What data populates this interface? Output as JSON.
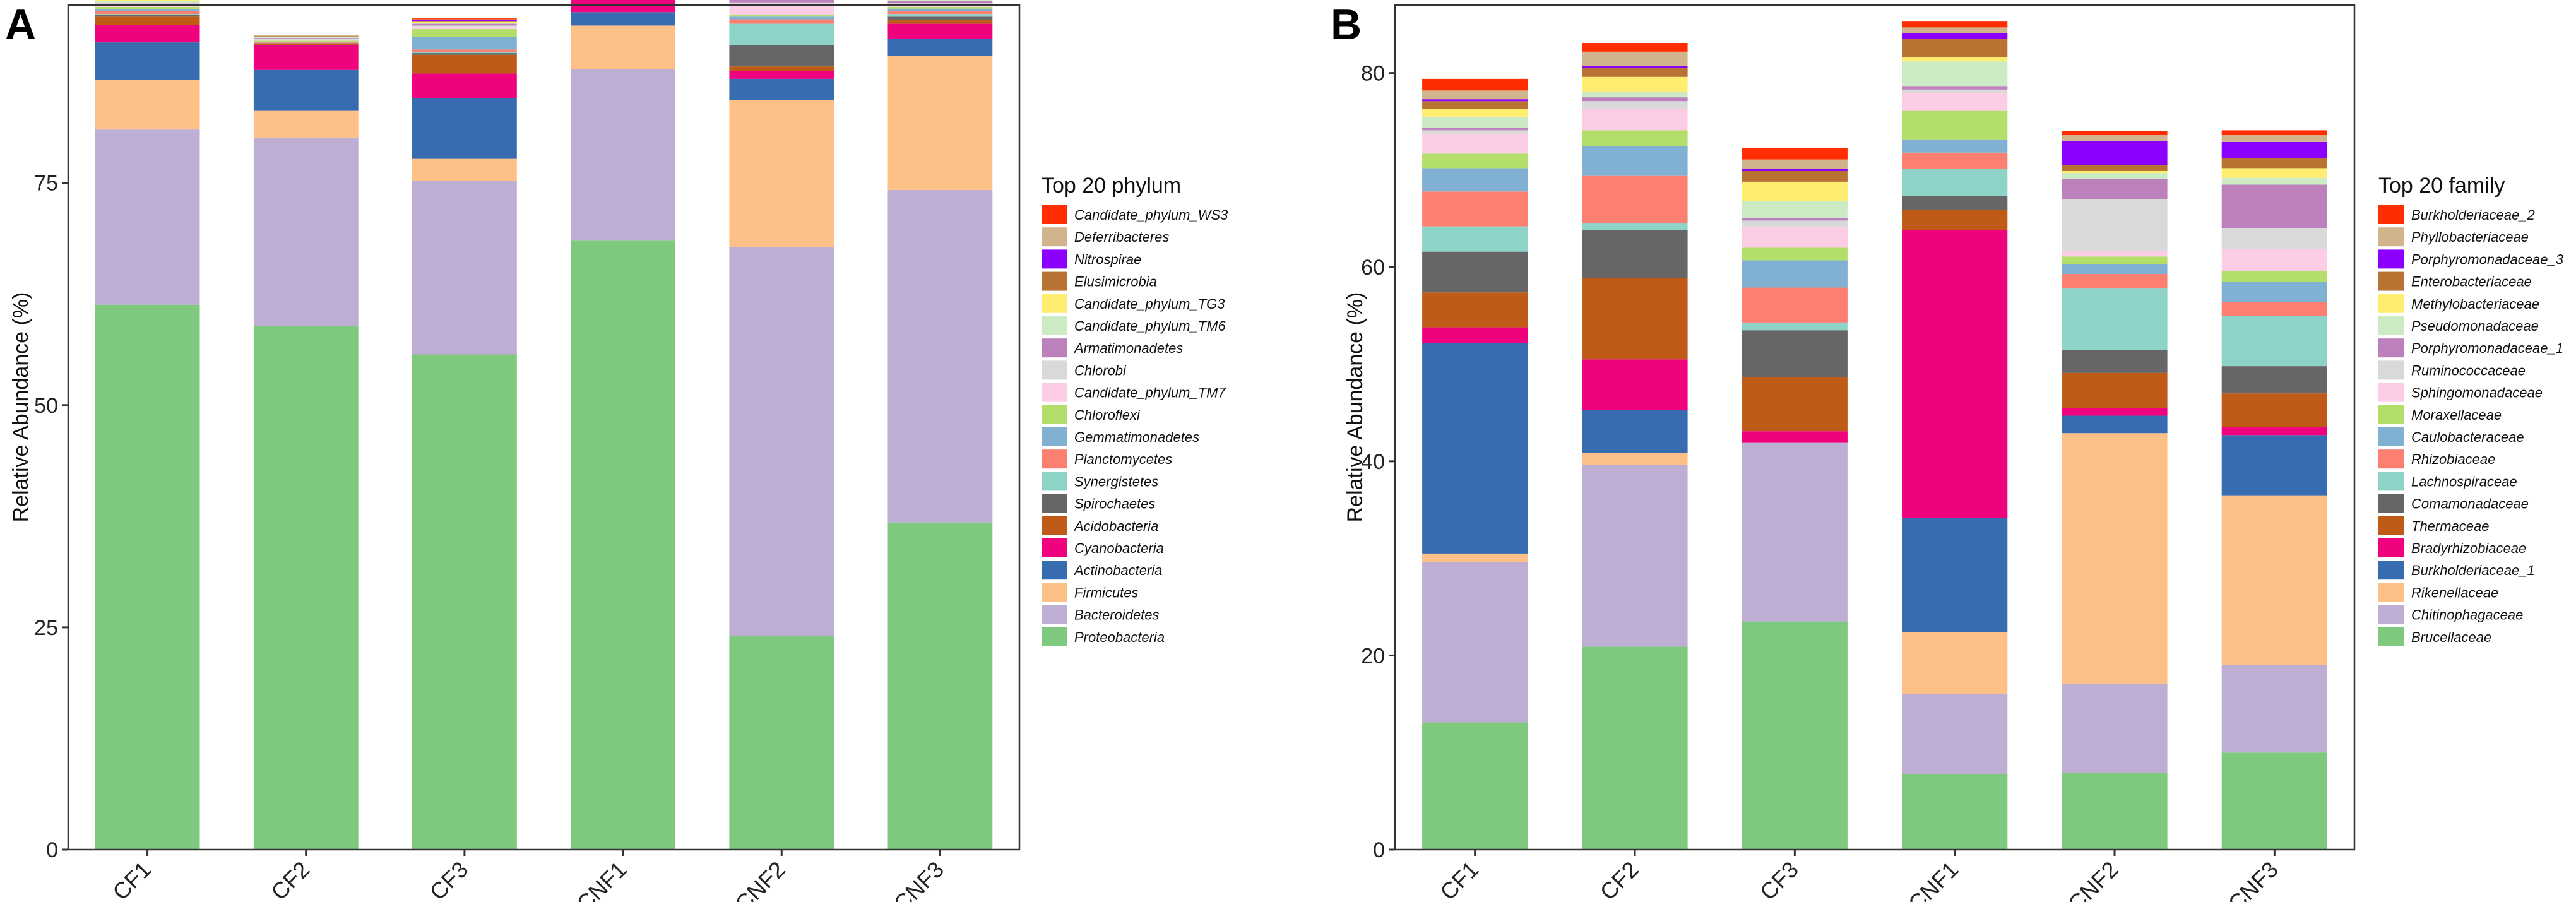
{
  "chart_data": [
    {
      "type": "bar",
      "stacked": true,
      "panel_label": "A",
      "ylabel": "Relative Abundance (%)",
      "xlabel": "",
      "ylim": [
        0,
        95
      ],
      "yticks": [
        0,
        25,
        50,
        75
      ],
      "categories": [
        "CF1",
        "CF2",
        "CF3",
        "CNF1",
        "CNF2",
        "CNF3"
      ],
      "legend_title": "Top 20 phylum",
      "legend_position": "right",
      "series": [
        {
          "name": "Proteobacteria",
          "color": "#7FC97F",
          "values": [
            61.3,
            58.9,
            55.7,
            68.5,
            24.0,
            36.8
          ]
        },
        {
          "name": "Bacteroidetes",
          "color": "#BEAED4",
          "values": [
            19.7,
            21.2,
            19.5,
            19.3,
            43.8,
            37.4
          ]
        },
        {
          "name": "Firmicutes",
          "color": "#FDC086",
          "values": [
            5.6,
            3.0,
            2.5,
            4.9,
            16.5,
            15.1
          ]
        },
        {
          "name": "Actinobacteria",
          "color": "#386CB0",
          "values": [
            4.2,
            4.6,
            6.8,
            1.5,
            2.4,
            1.9
          ]
        },
        {
          "name": "Cyanobacteria",
          "color": "#F0027F",
          "values": [
            2.0,
            2.8,
            2.8,
            1.6,
            0.9,
            1.7
          ]
        },
        {
          "name": "Acidobacteria",
          "color": "#BF5B17",
          "values": [
            0.9,
            0.1,
            2.1,
            0.3,
            0.5,
            0.4
          ]
        },
        {
          "name": "Spirochaetes",
          "color": "#666666",
          "values": [
            0.2,
            0.1,
            0.2,
            0.4,
            2.4,
            0.4
          ]
        },
        {
          "name": "Synergistetes",
          "color": "#8DD3C7",
          "values": [
            0.1,
            0.0,
            0.1,
            0.3,
            2.4,
            0.3
          ]
        },
        {
          "name": "Planctomycetes",
          "color": "#FB8072",
          "values": [
            0.3,
            0.1,
            0.3,
            0.3,
            0.5,
            0.3
          ]
        },
        {
          "name": "Gemmatimonadetes",
          "color": "#80B1D3",
          "values": [
            0.2,
            0.1,
            1.4,
            0.2,
            0.3,
            0.3
          ]
        },
        {
          "name": "Chloroflexi",
          "color": "#B3DE69",
          "values": [
            0.3,
            0.1,
            0.9,
            0.2,
            0.2,
            0.2
          ]
        },
        {
          "name": "Candidate_phylum_TM7",
          "color": "#FCCDE5",
          "values": [
            0.2,
            0.1,
            0.2,
            0.2,
            1.0,
            0.2
          ]
        },
        {
          "name": "Chlorobi",
          "color": "#D9D9D9",
          "values": [
            0.2,
            0.1,
            0.2,
            0.5,
            0.4,
            0.2
          ]
        },
        {
          "name": "Armatimonadetes",
          "color": "#BC80BD",
          "values": [
            0.1,
            0.1,
            0.2,
            0.3,
            0.3,
            0.3
          ]
        },
        {
          "name": "Candidate_phylum_TM6",
          "color": "#CCEBC5",
          "values": [
            0.2,
            0.1,
            0.1,
            0.2,
            0.2,
            0.2
          ]
        },
        {
          "name": "Candidate_phylum_TG3",
          "color": "#FFED6F",
          "values": [
            0.1,
            0.0,
            0.1,
            0.1,
            0.1,
            0.2
          ]
        },
        {
          "name": "Elusimicrobia",
          "color": "#B87333",
          "values": [
            0.1,
            0.1,
            0.1,
            0.2,
            0.1,
            0.2
          ]
        },
        {
          "name": "Nitrospirae",
          "color": "#8B00FF",
          "values": [
            0.1,
            0.0,
            0.1,
            0.1,
            0.1,
            0.1
          ]
        },
        {
          "name": "Deferribacteres",
          "color": "#D2B48C",
          "values": [
            0.1,
            0.1,
            0.1,
            0.2,
            0.2,
            0.2
          ]
        },
        {
          "name": "Candidate_phylum_WS3",
          "color": "#FF2D00",
          "values": [
            0.1,
            0.0,
            0.1,
            0.1,
            0.1,
            0.1
          ]
        }
      ]
    },
    {
      "type": "bar",
      "stacked": true,
      "panel_label": "B",
      "ylabel": "Relative Abundance (%)",
      "xlabel": "",
      "ylim": [
        0,
        87
      ],
      "yticks": [
        0,
        20,
        40,
        60,
        80
      ],
      "categories": [
        "CF1",
        "CF2",
        "CF3",
        "CNF1",
        "CNF2",
        "CNF3"
      ],
      "legend_title": "Top 20 family",
      "legend_position": "right",
      "series": [
        {
          "name": "Brucellaceae",
          "color": "#7FC97F",
          "values": [
            13.1,
            20.9,
            23.5,
            7.8,
            7.9,
            10.0
          ]
        },
        {
          "name": "Chitinophagaceae",
          "color": "#BEAED4",
          "values": [
            16.5,
            18.7,
            18.4,
            8.2,
            9.2,
            9.0
          ]
        },
        {
          "name": "Rikenellaceae",
          "color": "#FDC086",
          "values": [
            0.9,
            1.3,
            0.0,
            6.4,
            25.8,
            17.5
          ]
        },
        {
          "name": "Burkholderiaceae_1",
          "color": "#386CB0",
          "values": [
            21.7,
            4.4,
            0.0,
            11.8,
            1.8,
            6.2
          ]
        },
        {
          "name": "Bradyrhizobiaceae",
          "color": "#F0027F",
          "values": [
            1.6,
            5.2,
            1.2,
            29.6,
            0.8,
            0.8
          ]
        },
        {
          "name": "Thermaceae",
          "color": "#BF5B17",
          "values": [
            3.6,
            8.4,
            5.6,
            2.1,
            3.6,
            3.5
          ]
        },
        {
          "name": "Comamonadaceae",
          "color": "#666666",
          "values": [
            4.2,
            4.9,
            4.8,
            1.4,
            2.4,
            2.8
          ]
        },
        {
          "name": "Lachnospiraceae",
          "color": "#8DD3C7",
          "values": [
            2.6,
            0.7,
            0.8,
            2.8,
            6.3,
            5.2
          ]
        },
        {
          "name": "Rhizobiaceae",
          "color": "#FB8072",
          "values": [
            3.6,
            4.9,
            3.6,
            1.7,
            1.5,
            1.4
          ]
        },
        {
          "name": "Caulobacteraceae",
          "color": "#80B1D3",
          "values": [
            2.4,
            3.1,
            2.8,
            1.3,
            1.0,
            2.1
          ]
        },
        {
          "name": "Moraxellaceae",
          "color": "#B3DE69",
          "values": [
            1.5,
            1.6,
            1.3,
            3.0,
            0.8,
            1.1
          ]
        },
        {
          "name": "Sphingomonadaceae",
          "color": "#FCCDE5",
          "values": [
            2.0,
            2.2,
            2.1,
            1.8,
            0.6,
            2.3
          ]
        },
        {
          "name": "Ruminococcaceae",
          "color": "#D9D9D9",
          "values": [
            0.4,
            0.8,
            0.7,
            0.4,
            5.3,
            2.1
          ]
        },
        {
          "name": "Porphyromonadaceae_1",
          "color": "#BC80BD",
          "values": [
            0.3,
            0.4,
            0.3,
            0.3,
            2.1,
            4.5
          ]
        },
        {
          "name": "Pseudomonadaceae",
          "color": "#CCEBC5",
          "values": [
            1.1,
            0.6,
            1.7,
            2.6,
            0.6,
            0.7
          ]
        },
        {
          "name": "Methylobacteriaceae",
          "color": "#FFED6F",
          "values": [
            0.8,
            1.5,
            2.0,
            0.4,
            0.2,
            1.0
          ]
        },
        {
          "name": "Enterobacteriaceae",
          "color": "#B87333",
          "values": [
            0.8,
            0.9,
            1.1,
            1.9,
            0.6,
            1.0
          ]
        },
        {
          "name": "Porphyromonadaceae_3",
          "color": "#8B00FF",
          "values": [
            0.2,
            0.2,
            0.2,
            0.6,
            2.5,
            1.7
          ]
        },
        {
          "name": "Phyllobacteriaceae",
          "color": "#D2B48C",
          "values": [
            0.9,
            1.5,
            1.0,
            0.6,
            0.6,
            0.7
          ]
        },
        {
          "name": "Burkholderiaceae_2",
          "color": "#FF2D00",
          "values": [
            1.2,
            0.9,
            1.2,
            0.6,
            0.4,
            0.5
          ]
        }
      ]
    }
  ]
}
